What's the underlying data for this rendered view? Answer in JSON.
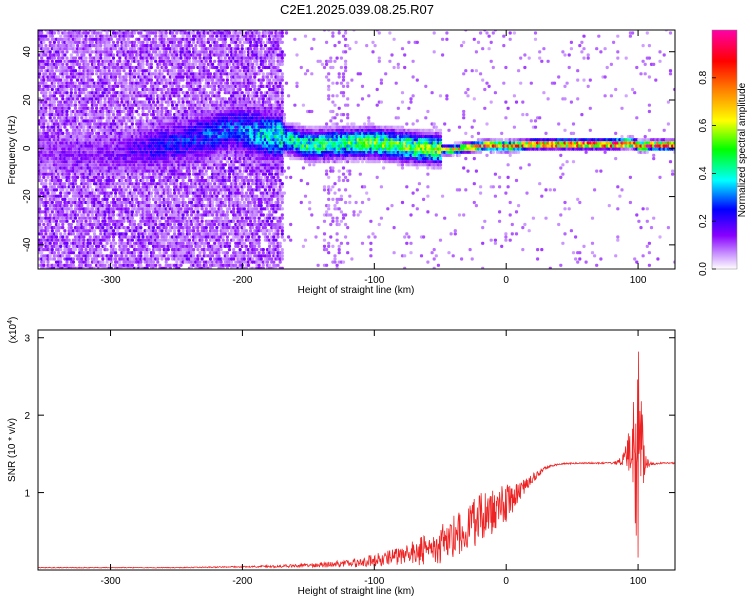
{
  "title": "C2E1.2025.039.08.25.R07",
  "chart_data": [
    {
      "type": "heatmap",
      "title": "",
      "xlabel": "Height of straight line (km)",
      "ylabel": "Frequency (Hz)",
      "xlim": [
        -355,
        128
      ],
      "ylim": [
        -50,
        49
      ],
      "xticks": [
        -300,
        -200,
        -100,
        0,
        100
      ],
      "yticks": [
        -40,
        -20,
        0,
        20,
        40
      ],
      "xtick_labels": [
        "-300",
        "-200",
        "-100",
        "0",
        "100"
      ],
      "ytick_labels": [
        "-40",
        "-20",
        "0",
        "20",
        "40"
      ],
      "grid": false,
      "colorbar": {
        "label": "Normalized spectral amplitude",
        "range": [
          0,
          1
        ],
        "ticks": [
          0.0,
          0.2,
          0.4,
          0.6,
          0.8
        ],
        "tick_labels": [
          "0.0",
          "0.2",
          "0.4",
          "0.6",
          "0.8"
        ],
        "colors": [
          "#ffffff",
          "#8800ff",
          "#0000ff",
          "#00ffff",
          "#00ff00",
          "#ffff00",
          "#ff7f00",
          "#ff0000",
          "#ff00aa"
        ]
      },
      "ridge": {
        "x": [
          -350,
          -300,
          -270,
          -220,
          -210,
          -170,
          -150,
          -120,
          -100,
          -70,
          -45,
          -30,
          -15,
          0,
          20,
          50,
          80,
          95,
          100,
          110,
          128
        ],
        "y": [
          -2,
          -3,
          0,
          6,
          8,
          4,
          1,
          2,
          2,
          0,
          -1,
          0,
          1,
          0.5,
          1.5,
          1.5,
          1.5,
          2,
          0.5,
          1,
          1
        ],
        "peak_amplitude": [
          0.12,
          0.14,
          0.22,
          0.3,
          0.28,
          0.45,
          0.5,
          0.52,
          0.55,
          0.58,
          0.6,
          0.75,
          0.85,
          0.9,
          0.85,
          0.92,
          0.95,
          0.98,
          0.9,
          0.95,
          0.98
        ]
      }
    },
    {
      "type": "line",
      "title": "",
      "xlabel": "Height of straight line (km)",
      "ylabel": "SNR (10 * v/v)",
      "multiplier_label": "(x10",
      "multiplier_exponent": "4",
      "xlim": [
        -355,
        128
      ],
      "ylim": [
        0,
        3.1
      ],
      "xticks": [
        -300,
        -200,
        -100,
        0,
        100
      ],
      "yticks": [
        1,
        2,
        3
      ],
      "xtick_labels": [
        "-300",
        "-200",
        "-100",
        "0",
        "100"
      ],
      "ytick_labels": [
        "1",
        "2",
        "3"
      ],
      "grid": false,
      "series": [
        {
          "color": "#ee2222",
          "x": [
            -355,
            -300,
            -250,
            -200,
            -160,
            -130,
            -110,
            -95,
            -80,
            -65,
            -50,
            -40,
            -30,
            -20,
            -10,
            0,
            10,
            20,
            30,
            40,
            60,
            80,
            85,
            90,
            95,
            98,
            100,
            102,
            104,
            106,
            108,
            112,
            118,
            128
          ],
          "y": [
            0.03,
            0.03,
            0.03,
            0.04,
            0.05,
            0.07,
            0.09,
            0.13,
            0.18,
            0.22,
            0.3,
            0.42,
            0.52,
            0.62,
            0.72,
            0.84,
            1.0,
            1.18,
            1.32,
            1.37,
            1.38,
            1.38,
            1.39,
            1.42,
            1.5,
            1.2,
            1.4,
            1.5,
            1.35,
            1.38,
            1.37,
            1.37,
            1.38,
            1.38
          ],
          "noise": [
            0.005,
            0.005,
            0.005,
            0.008,
            0.02,
            0.04,
            0.06,
            0.09,
            0.12,
            0.18,
            0.24,
            0.28,
            0.32,
            0.34,
            0.3,
            0.24,
            0.14,
            0.06,
            0.02,
            0.01,
            0.01,
            0.01,
            0.03,
            0.12,
            0.5,
            1.1,
            1.4,
            0.9,
            0.4,
            0.12,
            0.04,
            0.01,
            0.01,
            0.01
          ]
        }
      ]
    }
  ]
}
